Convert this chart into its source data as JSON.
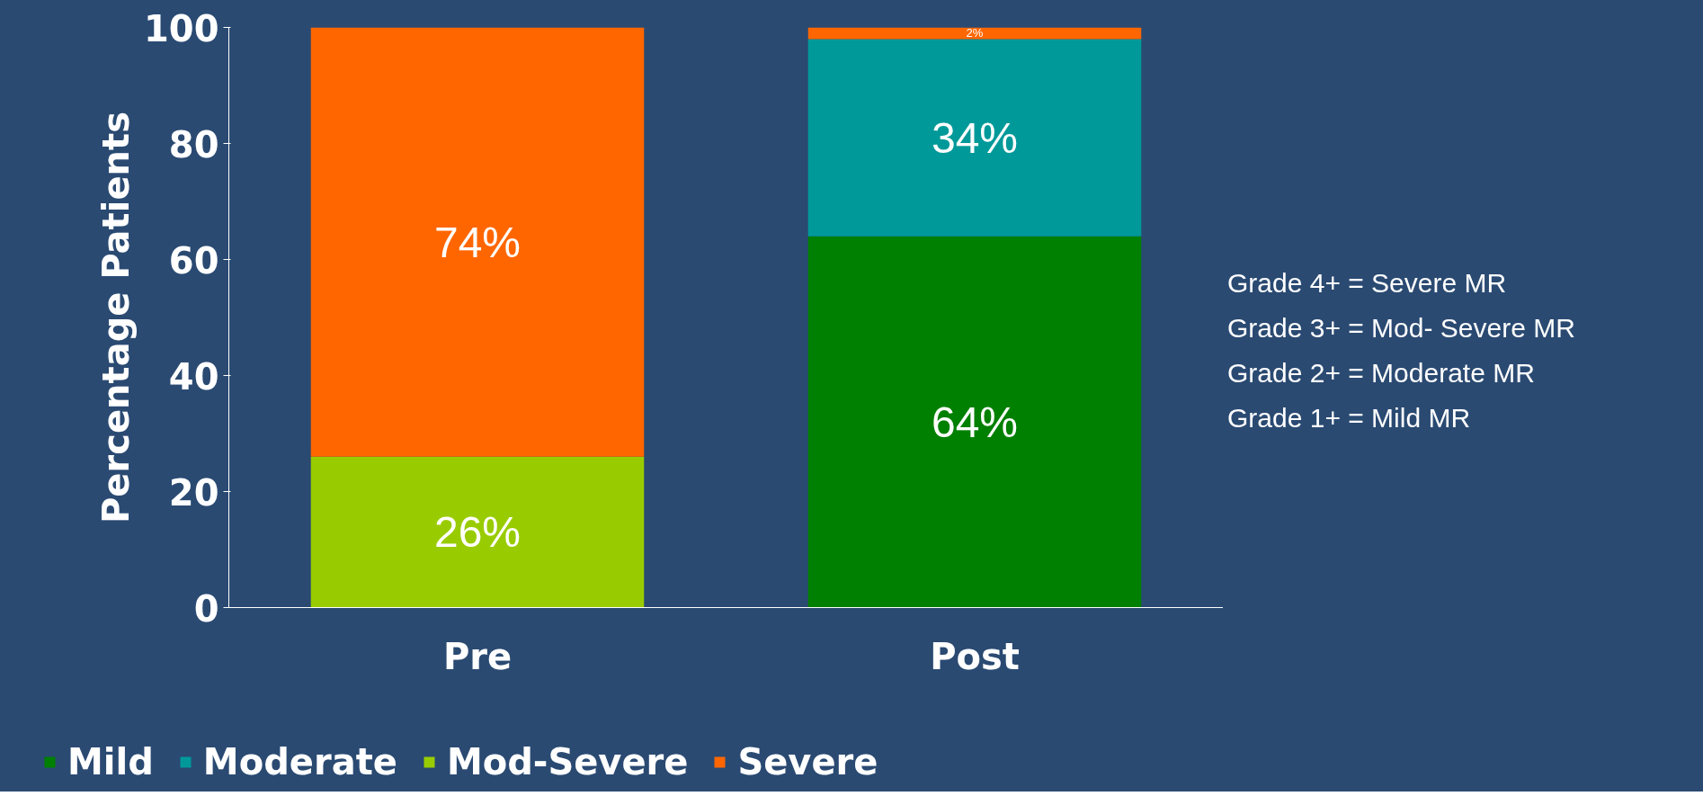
{
  "chart_data": {
    "type": "bar",
    "stacked": true,
    "ylabel": "Percentage Patients",
    "categories": [
      "Pre",
      "Post"
    ],
    "ylim": [
      0,
      100
    ],
    "yticks": [
      0,
      20,
      40,
      60,
      80,
      100
    ],
    "grid": false,
    "legend": "bottom",
    "series": [
      {
        "name": "Mild",
        "color": "#008000",
        "values": [
          null,
          64
        ],
        "value_labels": [
          null,
          "64%"
        ]
      },
      {
        "name": "Moderate",
        "color": "#009999",
        "values": [
          null,
          34
        ],
        "value_labels": [
          null,
          "34%"
        ]
      },
      {
        "name": "Mod-Severe",
        "color": "#99cc00",
        "values": [
          26,
          null
        ],
        "value_labels": [
          "26%",
          null
        ]
      },
      {
        "name": "Severe",
        "color": "#ff6600",
        "values": [
          74,
          2
        ],
        "value_labels": [
          "74%",
          "2%"
        ]
      }
    ],
    "annotations": [
      "Grade 4+ = Severe MR",
      "Grade 3+ = Mod- Severe MR",
      "Grade 2+ = Moderate MR",
      "Grade 1+ = Mild MR"
    ]
  }
}
